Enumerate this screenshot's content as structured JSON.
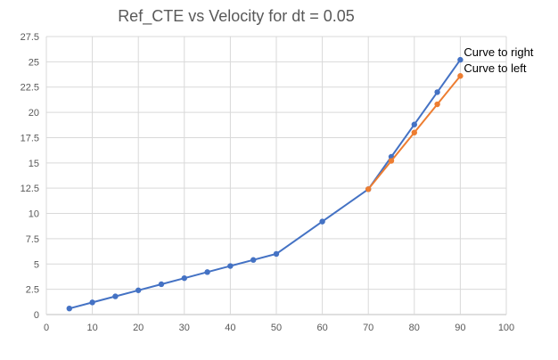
{
  "chart_data": {
    "type": "line",
    "title": "Ref_CTE vs Velocity for dt = 0.05",
    "xlabel": "",
    "ylabel": "",
    "xlim": [
      0,
      100
    ],
    "ylim": [
      0,
      27.5
    ],
    "x_ticks": [
      0,
      10,
      20,
      30,
      40,
      50,
      60,
      70,
      80,
      90,
      100
    ],
    "y_ticks": [
      0,
      2.5,
      5,
      7.5,
      10,
      12.5,
      15,
      17.5,
      20,
      22.5,
      25,
      27.5
    ],
    "x_tick_labels": [
      "0",
      "10",
      "20",
      "30",
      "40",
      "50",
      "60",
      "70",
      "80",
      "90",
      "100"
    ],
    "y_tick_labels": [
      "0",
      "2.5",
      "5",
      "7.5",
      "10",
      "12.5",
      "15",
      "17.5",
      "20",
      "22.5",
      "25",
      "27.5"
    ],
    "grid": true,
    "series": [
      {
        "name": "Curve to right",
        "color": "#4472c4",
        "points": [
          [
            5,
            0.6
          ],
          [
            10,
            1.2
          ],
          [
            15,
            1.8
          ],
          [
            20,
            2.4
          ],
          [
            25,
            3.0
          ],
          [
            30,
            3.6
          ],
          [
            35,
            4.2
          ],
          [
            40,
            4.8
          ],
          [
            45,
            5.4
          ],
          [
            50,
            6.0
          ],
          [
            60,
            9.2
          ],
          [
            70,
            12.4
          ],
          [
            75,
            15.6
          ],
          [
            80,
            18.8
          ],
          [
            85,
            22.0
          ],
          [
            90,
            25.2
          ]
        ]
      },
      {
        "name": "Curve to left",
        "color": "#ed7d31",
        "points": [
          [
            70,
            12.4
          ],
          [
            75,
            15.2
          ],
          [
            80,
            18.0
          ],
          [
            85,
            20.8
          ],
          [
            90,
            23.6
          ]
        ]
      }
    ]
  }
}
